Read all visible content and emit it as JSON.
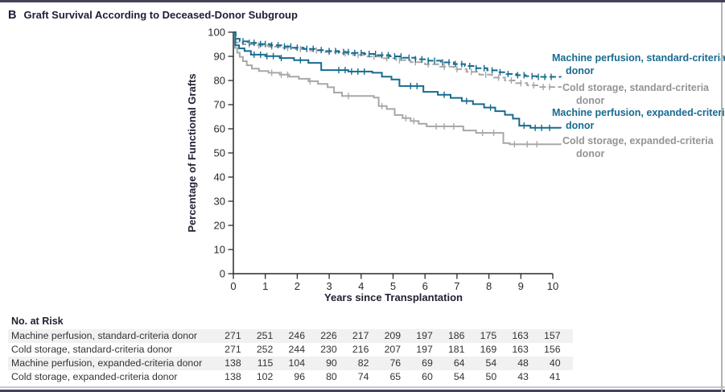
{
  "panel": {
    "letter": "B",
    "title": "Graft Survival According to Deceased-Donor Subgroup"
  },
  "colors": {
    "blue": "#176b8f",
    "gray_line": "#a8a8a8",
    "gray_text": "#949494",
    "axis": "#2a2a2a",
    "dark_rule": "#42425a",
    "row_shade": "#f1f1f1"
  },
  "chart_data": {
    "type": "line",
    "subtype": "kaplan-meier-step",
    "title": "Graft Survival According to Deceased-Donor Subgroup",
    "xlabel": "Years since Transplantation",
    "ylabel": "Percentage of Functional Grafts",
    "xlim": [
      0,
      10
    ],
    "ylim": [
      0,
      100
    ],
    "xticks": [
      0,
      1,
      2,
      3,
      4,
      5,
      6,
      7,
      8,
      9,
      10
    ],
    "yticks": [
      0,
      10,
      20,
      30,
      40,
      50,
      60,
      70,
      80,
      90,
      100
    ],
    "grid": false,
    "legend_position": "right-of-curve-ends",
    "series": [
      {
        "name": "Machine perfusion, standard-criteria donor",
        "color": "#176b8f",
        "dash": true,
        "points": [
          [
            0,
            100
          ],
          [
            0.07,
            97.3
          ],
          [
            0.2,
            96.2
          ],
          [
            0.45,
            95.6
          ],
          [
            0.8,
            95.1
          ],
          [
            1.15,
            94.6
          ],
          [
            1.5,
            94.1
          ],
          [
            1.85,
            93.6
          ],
          [
            2.2,
            93.1
          ],
          [
            2.55,
            92.6
          ],
          [
            2.9,
            92.2
          ],
          [
            3.3,
            91.8
          ],
          [
            3.7,
            91.4
          ],
          [
            4.1,
            91.0
          ],
          [
            4.5,
            90.5
          ],
          [
            4.9,
            90.0
          ],
          [
            5.3,
            89.4
          ],
          [
            5.7,
            88.8
          ],
          [
            6.1,
            88.2
          ],
          [
            6.5,
            87.5
          ],
          [
            6.9,
            86.8
          ],
          [
            7.25,
            86.0
          ],
          [
            7.6,
            85.1
          ],
          [
            7.95,
            84.2
          ],
          [
            8.25,
            83.4
          ],
          [
            8.55,
            82.7
          ],
          [
            8.85,
            82.2
          ],
          [
            9.15,
            81.8
          ],
          [
            9.5,
            81.5
          ],
          [
            10.25,
            81.4
          ]
        ],
        "censor_times": [
          0.3,
          0.5,
          0.65,
          0.85,
          1.0,
          1.2,
          1.4,
          1.6,
          1.8,
          2.0,
          2.3,
          2.5,
          2.75,
          3.0,
          3.2,
          3.45,
          3.6,
          3.8,
          4.0,
          4.25,
          4.45,
          4.65,
          4.85,
          5.05,
          5.25,
          5.5,
          5.7,
          5.9,
          6.1,
          6.3,
          6.55,
          6.75,
          6.95,
          7.15,
          7.4,
          7.6,
          7.85,
          8.1,
          8.35,
          8.6,
          8.9,
          9.1,
          9.35,
          9.55,
          9.75,
          9.95
        ]
      },
      {
        "name": "Cold storage, standard-criteria donor",
        "color": "#a8a8a8",
        "dash": true,
        "points": [
          [
            0,
            100
          ],
          [
            0.07,
            95.7
          ],
          [
            0.3,
            95.0
          ],
          [
            0.7,
            94.5
          ],
          [
            1.1,
            94.0
          ],
          [
            1.5,
            93.5
          ],
          [
            1.95,
            93.0
          ],
          [
            2.4,
            92.4
          ],
          [
            2.85,
            91.8
          ],
          [
            3.3,
            91.2
          ],
          [
            3.75,
            90.6
          ],
          [
            4.2,
            89.9
          ],
          [
            4.65,
            89.2
          ],
          [
            5.1,
            88.4
          ],
          [
            5.55,
            87.6
          ],
          [
            6.0,
            86.7
          ],
          [
            6.45,
            85.7
          ],
          [
            6.9,
            84.7
          ],
          [
            7.3,
            83.6
          ],
          [
            7.7,
            82.4
          ],
          [
            8.1,
            81.2
          ],
          [
            8.5,
            80.0
          ],
          [
            8.85,
            78.9
          ],
          [
            9.2,
            78.0
          ],
          [
            9.55,
            77.3
          ],
          [
            10.25,
            77.0
          ]
        ],
        "censor_times": [
          0.5,
          0.8,
          1.2,
          1.7,
          2.1,
          2.6,
          3.0,
          3.5,
          3.9,
          4.4,
          4.8,
          5.2,
          5.7,
          6.1,
          6.6,
          7.0,
          7.45,
          7.9,
          8.3,
          8.7,
          9.0,
          9.4,
          9.7,
          9.9
        ]
      },
      {
        "name": "Machine perfusion, expanded-criteria donor",
        "color": "#176b8f",
        "dash": false,
        "points": [
          [
            0,
            100
          ],
          [
            0.06,
            94.6
          ],
          [
            0.18,
            93.3
          ],
          [
            0.35,
            92.2
          ],
          [
            0.55,
            90.7
          ],
          [
            1.0,
            90.1
          ],
          [
            1.45,
            89.3
          ],
          [
            1.9,
            88.4
          ],
          [
            2.35,
            87.3
          ],
          [
            2.75,
            84.3
          ],
          [
            3.6,
            83.7
          ],
          [
            4.35,
            83.2
          ],
          [
            4.65,
            81.6
          ],
          [
            4.95,
            80.4
          ],
          [
            5.2,
            77.7
          ],
          [
            5.95,
            75.3
          ],
          [
            6.4,
            74.1
          ],
          [
            6.8,
            72.8
          ],
          [
            7.15,
            71.5
          ],
          [
            7.5,
            70.2
          ],
          [
            7.85,
            68.8
          ],
          [
            8.2,
            67.3
          ],
          [
            8.5,
            65.8
          ],
          [
            8.75,
            64.2
          ],
          [
            8.95,
            61.3
          ],
          [
            9.3,
            60.4
          ],
          [
            10.25,
            60.2
          ]
        ],
        "censor_times": [
          0.65,
          0.85,
          1.05,
          1.25,
          1.5,
          2.1,
          3.3,
          3.5,
          3.7,
          3.9,
          4.1,
          5.55,
          5.75,
          6.6,
          7.3,
          8.05,
          9.1,
          9.45,
          9.65,
          9.9
        ]
      },
      {
        "name": "Cold storage, expanded-criteria donor",
        "color": "#a8a8a8",
        "dash": false,
        "points": [
          [
            0,
            100
          ],
          [
            0.05,
            93.5
          ],
          [
            0.12,
            91.5
          ],
          [
            0.2,
            89.8
          ],
          [
            0.3,
            88.0
          ],
          [
            0.42,
            86.3
          ],
          [
            0.58,
            84.9
          ],
          [
            0.8,
            83.9
          ],
          [
            1.1,
            83.2
          ],
          [
            1.45,
            82.4
          ],
          [
            1.75,
            81.6
          ],
          [
            2.05,
            80.7
          ],
          [
            2.35,
            79.7
          ],
          [
            2.65,
            78.6
          ],
          [
            2.95,
            77.2
          ],
          [
            3.15,
            75.0
          ],
          [
            3.4,
            73.6
          ],
          [
            4.4,
            72.9
          ],
          [
            4.55,
            69.4
          ],
          [
            4.8,
            68.2
          ],
          [
            5.05,
            65.7
          ],
          [
            5.3,
            64.4
          ],
          [
            5.55,
            63.2
          ],
          [
            5.8,
            62.1
          ],
          [
            6.05,
            61.0
          ],
          [
            7.2,
            59.3
          ],
          [
            7.6,
            58.3
          ],
          [
            8.45,
            54.1
          ],
          [
            8.65,
            53.6
          ],
          [
            10.25,
            53.5
          ]
        ],
        "censor_times": [
          1.2,
          1.5,
          1.7,
          2.4,
          3.6,
          4.65,
          5.4,
          5.65,
          6.35,
          6.6,
          6.9,
          7.8,
          8.15,
          8.8,
          9.2,
          9.5
        ]
      }
    ]
  },
  "risk_table": {
    "header": "No. at Risk",
    "time_points": [
      0,
      1,
      2,
      3,
      4,
      5,
      6,
      7,
      8,
      9,
      10
    ],
    "rows": [
      {
        "label": "Machine perfusion, standard-criteria donor",
        "values": [
          271,
          251,
          246,
          226,
          217,
          209,
          197,
          186,
          175,
          163,
          157
        ]
      },
      {
        "label": "Cold storage, standard-criteria donor",
        "values": [
          271,
          252,
          244,
          230,
          216,
          207,
          197,
          181,
          169,
          163,
          156
        ]
      },
      {
        "label": "Machine perfusion, expanded-criteria donor",
        "values": [
          138,
          115,
          104,
          90,
          82,
          76,
          69,
          64,
          54,
          48,
          40
        ]
      },
      {
        "label": "Cold storage, expanded-criteria donor",
        "values": [
          138,
          102,
          96,
          80,
          74,
          65,
          60,
          54,
          50,
          43,
          41
        ]
      }
    ]
  }
}
